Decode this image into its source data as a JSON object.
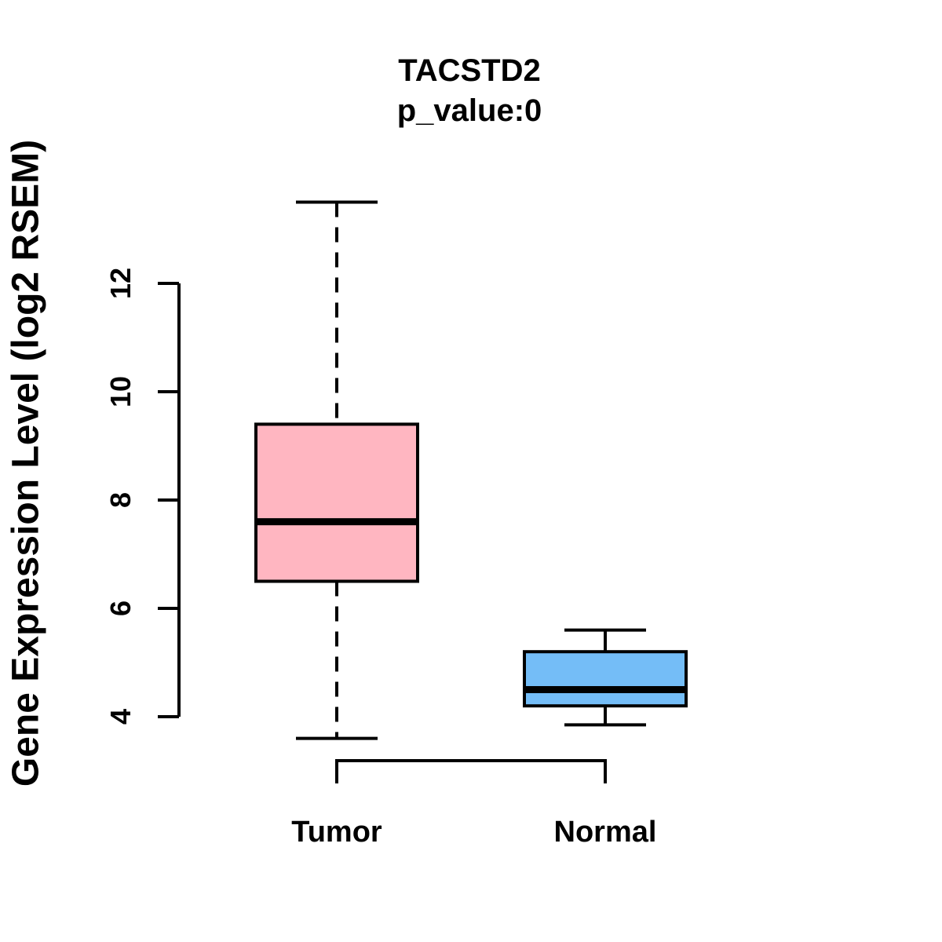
{
  "chart_data": {
    "type": "boxplot",
    "title": "TACSTD2",
    "subtitle": "p_value:0",
    "ylabel": "Gene Expression Level (log2 RSEM)",
    "xlabel": "",
    "yticks": [
      4,
      6,
      8,
      10,
      12
    ],
    "ylim": [
      3.2,
      13.9
    ],
    "grid": "off",
    "line_color": "#000000",
    "background_color": "#FFFFFF",
    "categories": [
      "Tumor",
      "Normal"
    ],
    "groups": [
      {
        "label": "Tumor",
        "fill_color": "#FFB6C1",
        "whisker_low": 3.6,
        "q1": 6.5,
        "median": 7.6,
        "q3": 9.4,
        "whisker_high": 13.5
      },
      {
        "label": "Normal",
        "fill_color": "#74BDF7",
        "whisker_low": 3.85,
        "q1": 4.2,
        "median": 4.5,
        "q3": 5.2,
        "whisker_high": 5.6
      }
    ],
    "comparison_bracket": {
      "from": "Tumor",
      "to": "Normal"
    }
  }
}
